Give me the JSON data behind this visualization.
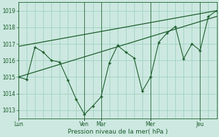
{
  "background_color": "#cce8e0",
  "grid_color": "#99ccbb",
  "line_color": "#1a5c2a",
  "marker_color": "#1a5c2a",
  "xlabel": "Pression niveau de la mer( hPa )",
  "ylim": [
    1012.5,
    1019.5
  ],
  "yticks": [
    1013,
    1014,
    1015,
    1016,
    1017,
    1018,
    1019
  ],
  "x_data": [
    0,
    1,
    2,
    3,
    4,
    5,
    6,
    7,
    8,
    9,
    10,
    11,
    12,
    13,
    14,
    15,
    16,
    17,
    18,
    19,
    20,
    21,
    22,
    23,
    24
  ],
  "y_main": [
    1015.0,
    1014.85,
    1016.8,
    1016.5,
    1016.0,
    1015.9,
    1014.8,
    1013.65,
    1012.75,
    1013.25,
    1013.8,
    1015.85,
    1016.9,
    1016.5,
    1016.15,
    1014.15,
    1015.0,
    1017.1,
    1017.65,
    1018.05,
    1016.1,
    1017.0,
    1016.6,
    1018.65,
    1019.0
  ],
  "y_trend1": [
    1016.85,
    1016.88,
    1016.91,
    1016.94,
    1016.97,
    1017.0,
    1017.05,
    1017.1,
    1017.15,
    1017.2,
    1017.25,
    1017.3,
    1017.35,
    1017.4,
    1017.45,
    1017.5,
    1017.55,
    1017.6,
    1017.65,
    1017.7,
    1017.75,
    1017.82,
    1017.9,
    1018.45,
    1019.0
  ],
  "y_trend2": [
    1015.0,
    1015.06,
    1015.12,
    1015.19,
    1015.26,
    1015.33,
    1015.4,
    1015.48,
    1015.56,
    1015.64,
    1015.72,
    1015.8,
    1015.88,
    1015.97,
    1016.06,
    1016.15,
    1016.24,
    1016.34,
    1016.44,
    1016.54,
    1016.64,
    1016.75,
    1016.87,
    1017.4,
    1018.65
  ],
  "xtick_positions": [
    0,
    8,
    10,
    16,
    22
  ],
  "xtick_labels": [
    "Lun",
    "Ven",
    "Mar",
    "Mer",
    "Jeu"
  ],
  "vline_positions": [
    8,
    10,
    16,
    22
  ],
  "xlim": [
    0,
    24
  ],
  "figsize": [
    3.2,
    2.0
  ],
  "dpi": 100
}
